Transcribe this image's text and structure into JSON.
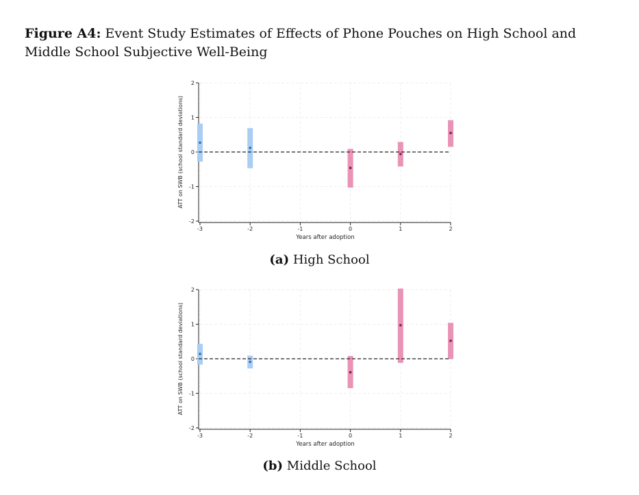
{
  "figure": {
    "label": "Figure A4:",
    "title": "Event Study Estimates of Effects of Phone Pouches on High School and Middle School Subjective Well-Being"
  },
  "colors": {
    "pre": "#a9cdf3",
    "pre_point": "#2f6fb3",
    "post": "#e993b6",
    "post_point": "#8b1d45",
    "zero_line": "#222222",
    "grid": "#eeeeee"
  },
  "chart_data": [
    {
      "type": "scatter",
      "panel": "a",
      "caption_letter": "(a)",
      "caption_text": "High School",
      "xlabel": "Years after adoption",
      "ylabel": "ATT on SWB (school standard deviations)",
      "xlim": [
        -3,
        2
      ],
      "ylim": [
        -2,
        2
      ],
      "xticks": [
        "-3",
        "-2",
        "-1",
        "0",
        "1",
        "2"
      ],
      "yticks": [
        "2",
        "1",
        "0",
        "-1",
        "-2"
      ],
      "grid": true,
      "reference_line": 0,
      "estimates": [
        {
          "x": -3,
          "y": 0.27,
          "lo": -0.28,
          "hi": 0.82,
          "period": "pre"
        },
        {
          "x": -2,
          "y": 0.12,
          "lo": -0.47,
          "hi": 0.69,
          "period": "pre"
        },
        {
          "x": 0,
          "y": -0.46,
          "lo": -1.03,
          "hi": 0.09,
          "period": "post"
        },
        {
          "x": 1,
          "y": -0.06,
          "lo": -0.42,
          "hi": 0.29,
          "period": "post"
        },
        {
          "x": 2,
          "y": 0.55,
          "lo": 0.15,
          "hi": 0.92,
          "period": "post"
        }
      ]
    },
    {
      "type": "scatter",
      "panel": "b",
      "caption_letter": "(b)",
      "caption_text": "Middle School",
      "xlabel": "Years after adoption",
      "ylabel": "ATT on SWB (school standard deviations)",
      "xlim": [
        -3,
        2
      ],
      "ylim": [
        -2,
        2
      ],
      "xticks": [
        "-3",
        "-2",
        "-1",
        "0",
        "1",
        "2"
      ],
      "yticks": [
        "2",
        "1",
        "0",
        "-1",
        "-2"
      ],
      "grid": true,
      "reference_line": 0,
      "estimates": [
        {
          "x": -3,
          "y": 0.14,
          "lo": -0.17,
          "hi": 0.43,
          "period": "pre"
        },
        {
          "x": -2,
          "y": -0.09,
          "lo": -0.28,
          "hi": 0.09,
          "period": "pre"
        },
        {
          "x": 0,
          "y": -0.39,
          "lo": -0.85,
          "hi": 0.08,
          "period": "post"
        },
        {
          "x": 1,
          "y": 0.97,
          "lo": -0.12,
          "hi": 2.03,
          "period": "post"
        },
        {
          "x": 2,
          "y": 0.52,
          "lo": -0.01,
          "hi": 1.04,
          "period": "post"
        }
      ]
    }
  ]
}
